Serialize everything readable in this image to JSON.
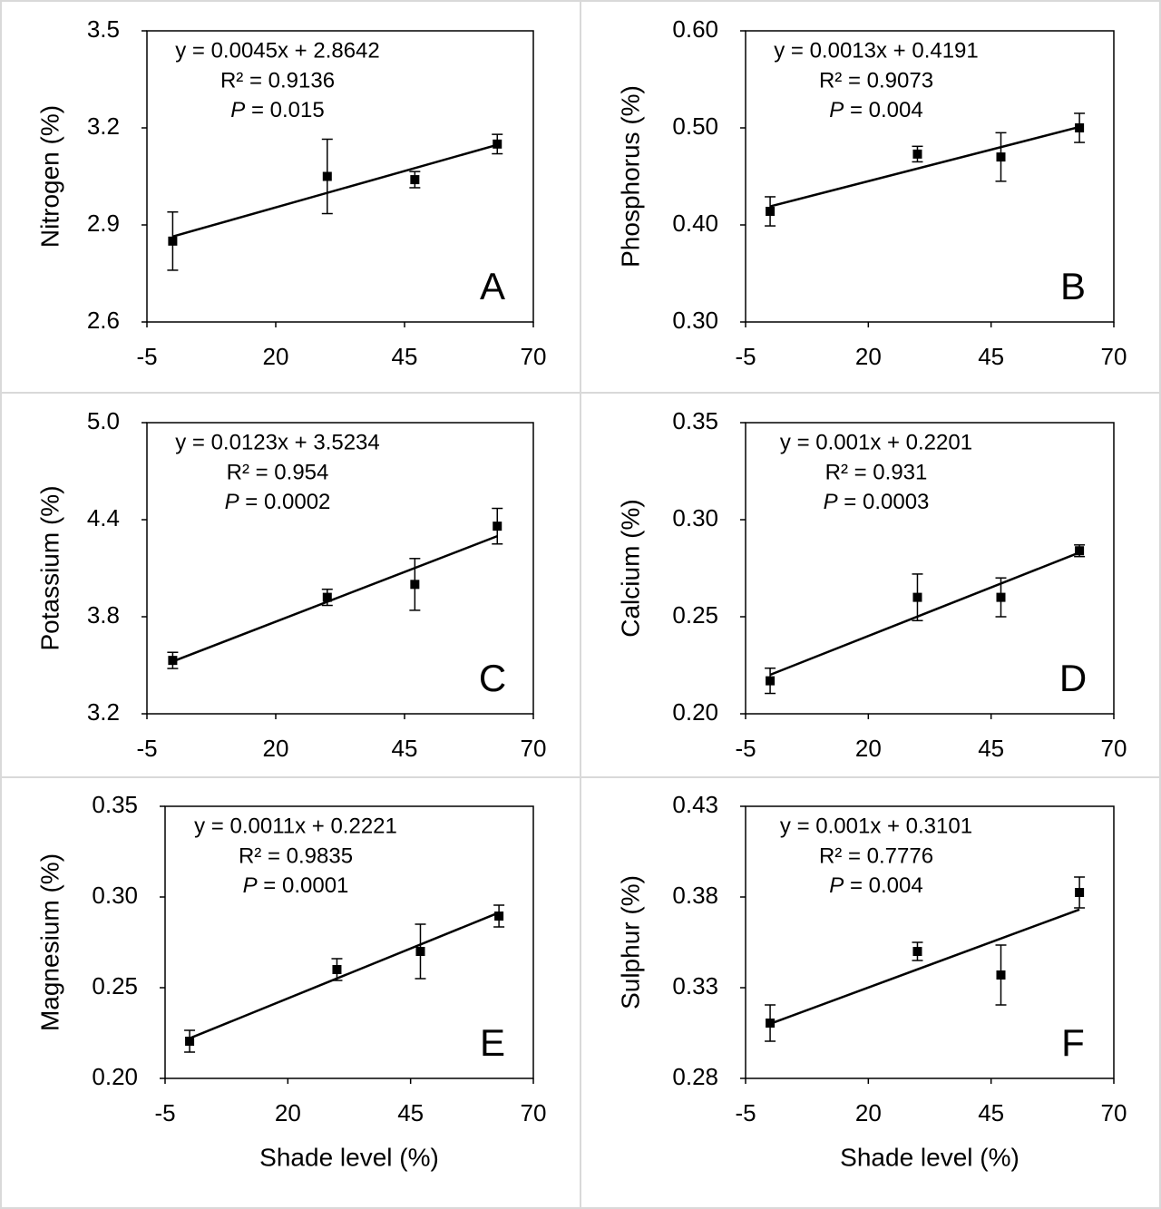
{
  "chart_data": [
    {
      "type": "scatter",
      "label": "A",
      "ylabel": "Nitrogen (%)",
      "annotations": [
        "y = 0.0045x + 2.8642",
        "R² = 0.9136",
        "P = 0.015"
      ],
      "x": [
        0,
        30,
        47,
        63
      ],
      "values": [
        2.85,
        3.05,
        3.04,
        3.15
      ],
      "errors": [
        0.09,
        0.115,
        0.025,
        0.03
      ],
      "trendline": {
        "slope": 0.0045,
        "intercept": 2.8642
      },
      "color": "#000000",
      "xlim": [
        -5,
        70
      ],
      "xticks": [
        -5,
        20,
        45,
        70
      ],
      "ylim": [
        2.6,
        3.5
      ],
      "yticks": [
        2.6,
        2.9,
        3.2,
        3.5
      ]
    },
    {
      "type": "scatter",
      "label": "B",
      "ylabel": "Phosphorus (%)",
      "annotations": [
        "y = 0.0013x + 0.4191",
        "R² = 0.9073",
        "P = 0.004"
      ],
      "x": [
        0,
        30,
        47,
        63
      ],
      "values": [
        0.414,
        0.473,
        0.47,
        0.5
      ],
      "errors": [
        0.015,
        0.008,
        0.025,
        0.015
      ],
      "trendline": {
        "slope": 0.0013,
        "intercept": 0.4191
      },
      "color": "#000000",
      "xlim": [
        -5,
        70
      ],
      "xticks": [
        -5,
        20,
        45,
        70
      ],
      "ylim": [
        0.3,
        0.6
      ],
      "yticks": [
        {
          "value": 0.3,
          "label": "0.30"
        },
        {
          "value": 0.4,
          "label": "0.40"
        },
        {
          "value": 0.5,
          "label": "0.50"
        },
        {
          "value": 0.6,
          "label": "0.60"
        }
      ]
    },
    {
      "type": "scatter",
      "label": "C",
      "ylabel": "Potassium (%)",
      "annotations": [
        "y = 0.0123x + 3.5234",
        "R² = 0.954",
        "P = 0.0002"
      ],
      "x": [
        0,
        30,
        47,
        63
      ],
      "values": [
        3.53,
        3.92,
        4.0,
        4.36
      ],
      "errors": [
        0.05,
        0.05,
        0.16,
        0.11
      ],
      "trendline": {
        "slope": 0.0123,
        "intercept": 3.5234
      },
      "color": "#000000",
      "xlim": [
        -5,
        70
      ],
      "xticks": [
        -5,
        20,
        45,
        70
      ],
      "ylim": [
        3.2,
        5.0
      ],
      "yticks": [
        3.2,
        3.8,
        4.4,
        {
          "value": 5.0,
          "label": "5.0"
        }
      ]
    },
    {
      "type": "scatter",
      "label": "D",
      "ylabel": "Calcium (%)",
      "annotations": [
        "y = 0.001x + 0.2201",
        "R² = 0.931",
        "P = 0.0003"
      ],
      "x": [
        0,
        30,
        47,
        63
      ],
      "values": [
        0.217,
        0.26,
        0.26,
        0.284
      ],
      "errors": [
        0.0065,
        0.012,
        0.01,
        0.003
      ],
      "trendline": {
        "slope": 0.001,
        "intercept": 0.2201
      },
      "color": "#000000",
      "xlim": [
        -5,
        70
      ],
      "xticks": [
        -5,
        20,
        45,
        70
      ],
      "ylim": [
        0.2,
        0.35
      ],
      "yticks": [
        {
          "value": 0.2,
          "label": "0.20"
        },
        0.25,
        {
          "value": 0.3,
          "label": "0.30"
        },
        0.35
      ]
    },
    {
      "type": "scatter",
      "label": "E",
      "ylabel": "Magnesium (%)",
      "xlabel": "Shade level (%)",
      "annotations": [
        "y = 0.0011x + 0.2221",
        "R² = 0.9835",
        "P = 0.0001"
      ],
      "x": [
        0,
        30,
        47,
        63
      ],
      "values": [
        0.2205,
        0.26,
        0.27,
        0.2895
      ],
      "errors": [
        0.006,
        0.006,
        0.015,
        0.006
      ],
      "trendline": {
        "slope": 0.0011,
        "intercept": 0.2221
      },
      "color": "#000000",
      "xlim": [
        -5,
        70
      ],
      "xticks": [
        -5,
        20,
        45,
        70
      ],
      "ylim": [
        0.2,
        0.35
      ],
      "yticks": [
        {
          "value": 0.2,
          "label": "0.20"
        },
        0.25,
        {
          "value": 0.3,
          "label": "0.30"
        },
        0.35
      ]
    },
    {
      "type": "scatter",
      "label": "F",
      "ylabel": "Sulphur (%)",
      "xlabel": "Shade level (%)",
      "annotations": [
        "y = 0.001x + 0.3101",
        "R² = 0.7776",
        "P = 0.004"
      ],
      "x": [
        0,
        30,
        47,
        63
      ],
      "values": [
        0.3105,
        0.35,
        0.337,
        0.3825
      ],
      "errors": [
        0.01,
        0.005,
        0.0165,
        0.0085
      ],
      "trendline": {
        "slope": 0.001,
        "intercept": 0.3101
      },
      "color": "#000000",
      "xlim": [
        -5,
        70
      ],
      "xticks": [
        -5,
        20,
        45,
        70
      ],
      "ylim": [
        0.28,
        0.43
      ],
      "yticks": [
        0.28,
        0.33,
        0.38,
        0.43
      ]
    }
  ]
}
